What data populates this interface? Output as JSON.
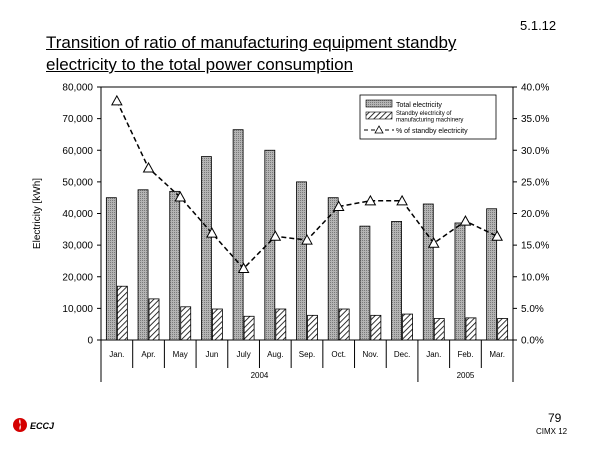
{
  "slide": {
    "section_number": "5.1.12",
    "title": "Transition of ratio of manufacturing equipment standby electricity to the total power consumption",
    "page_number": "79",
    "doc_code": "CIMX 12",
    "logo_text": "ECCJ"
  },
  "chart_data": {
    "type": "bar",
    "categories": [
      "Jan.",
      "Apr.",
      "May",
      "Jun",
      "July",
      "Aug.",
      "Sep.",
      "Oct.",
      "Nov.",
      "Dec.",
      "Jan.",
      "Feb.",
      "Mar."
    ],
    "year_groups": [
      {
        "label": "2004",
        "start": 0,
        "end": 9
      },
      {
        "label": "2005",
        "start": 10,
        "end": 12
      }
    ],
    "series": [
      {
        "name": "Total electricity",
        "axis": "left",
        "style": "bar-gray",
        "values": [
          45000,
          47500,
          47000,
          58000,
          66500,
          60000,
          50000,
          45000,
          36000,
          37500,
          43000,
          37000,
          41500
        ]
      },
      {
        "name": "Standby electricity of manufacturing machinery",
        "axis": "left",
        "style": "bar-hatched",
        "values": [
          17000,
          13000,
          10500,
          9800,
          7500,
          9800,
          7800,
          9800,
          7800,
          8200,
          6800,
          7000,
          6800
        ]
      },
      {
        "name": "% of standby electricity",
        "axis": "right",
        "style": "dashed-line-triangle",
        "values": [
          37.8,
          27.2,
          22.6,
          16.9,
          11.3,
          16.4,
          15.8,
          21.1,
          22.0,
          22.0,
          15.3,
          18.8,
          16.4
        ]
      }
    ],
    "ylabel": "Electricity [kWh]",
    "y_ticks": [
      "0",
      "10,000",
      "20,000",
      "30,000",
      "40,000",
      "50,000",
      "60,000",
      "70,000",
      "80,000"
    ],
    "ylim": [
      0,
      80000
    ],
    "y2_ticks": [
      "0.0%",
      "5.0%",
      "10.0%",
      "15.0%",
      "20.0%",
      "25.0%",
      "30.0%",
      "35.0%",
      "40.0%"
    ],
    "y2lim": [
      0,
      40
    ],
    "grid": false,
    "legend_position": "top-right"
  },
  "colors": {
    "bar_total": "#a0a0a0",
    "bar_standby": "#ffffff",
    "line": "#000000",
    "logo_red": "#d40000"
  }
}
